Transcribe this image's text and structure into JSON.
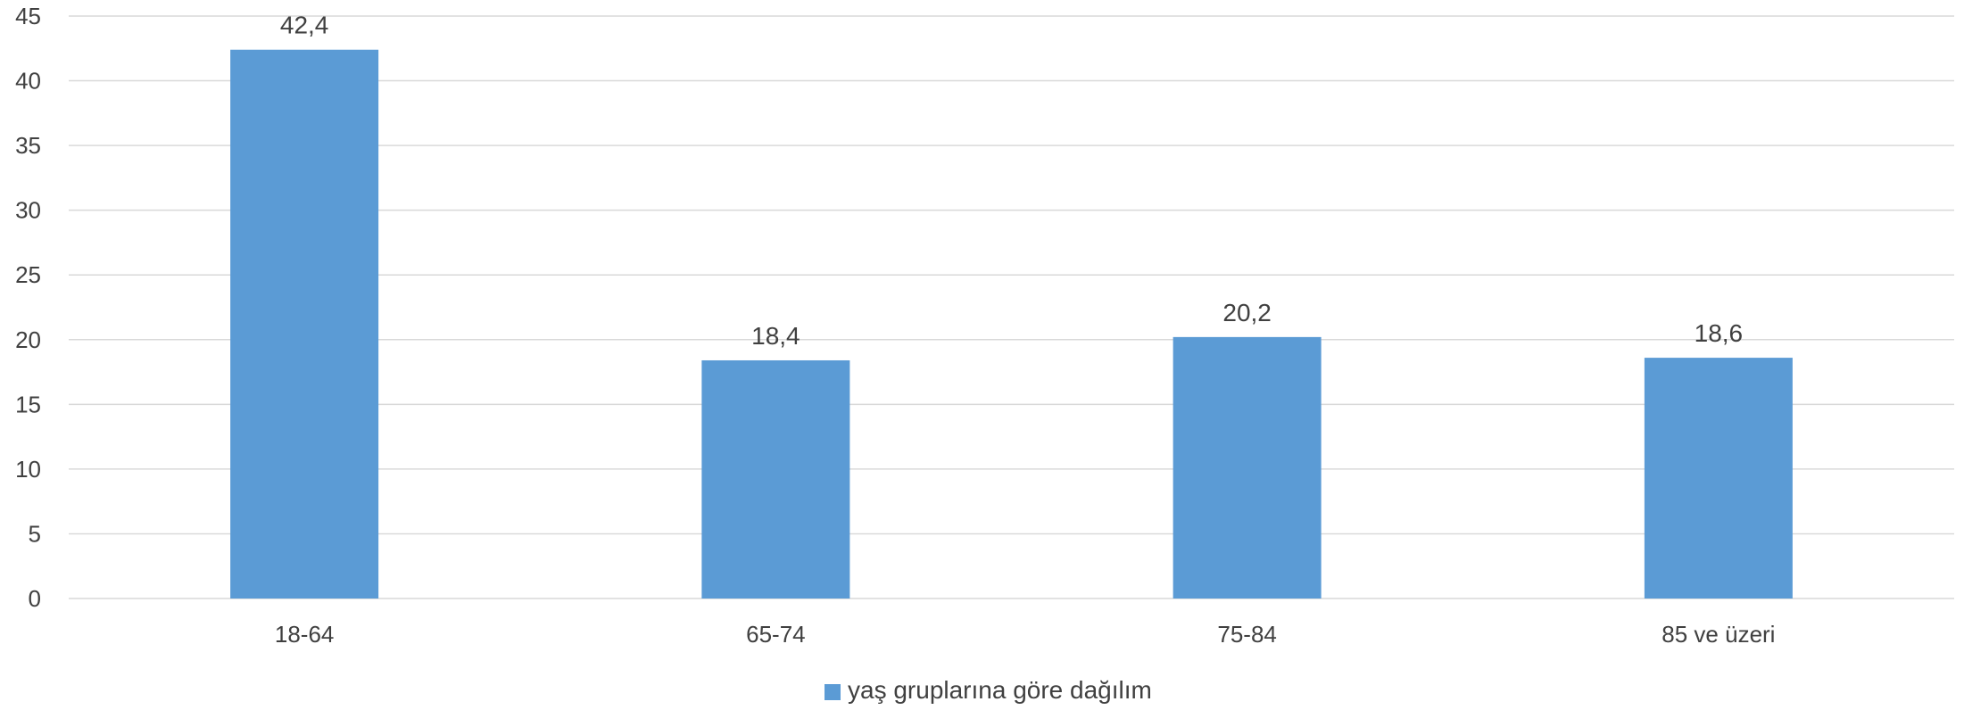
{
  "chart_data": {
    "type": "bar",
    "title": "",
    "xlabel": "",
    "ylabel": "",
    "categories": [
      "18-64",
      "65-74",
      "75-84",
      "85 ve üzeri"
    ],
    "series": [
      {
        "name": "yaş gruplarına göre dağılım",
        "values": [
          42.4,
          18.4,
          20.2,
          18.6
        ],
        "labels": [
          "42,4",
          "18,4",
          "20,2",
          "18,6"
        ],
        "color": "#5B9BD5"
      }
    ],
    "ylim": [
      0,
      45
    ],
    "yticks": [
      0,
      5,
      10,
      15,
      20,
      25,
      30,
      35,
      40,
      45
    ],
    "grid": true,
    "legend": "bottom"
  },
  "colors": {
    "bar": "#5B9BD5",
    "grid": "#D9D9D9",
    "text": "#404040"
  }
}
